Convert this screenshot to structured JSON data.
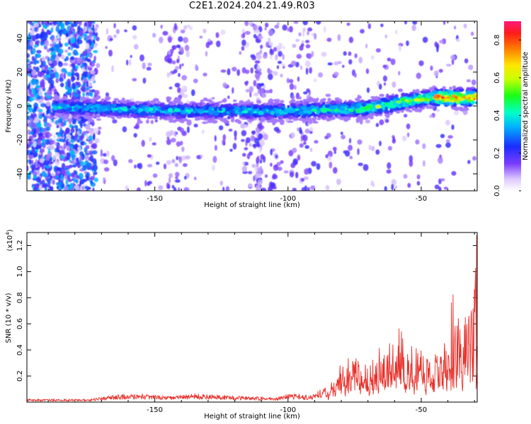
{
  "title": "C2E1.2024.204.21.49.R03",
  "chart_data": [
    {
      "type": "heatmap",
      "xlabel": "Height of straight line (km)",
      "ylabel": "Frequency (Hz)",
      "xlim": [
        -198,
        -29
      ],
      "ylim": [
        -50,
        50
      ],
      "xticks": [
        -150,
        -100,
        -50
      ],
      "yticks": [
        -40,
        -20,
        0,
        20,
        40
      ],
      "colorbar": {
        "label": "Normalized spectral amplitude",
        "range": [
          0.0,
          0.9
        ],
        "ticks": [
          0.0,
          0.2,
          0.4,
          0.6,
          0.8
        ]
      },
      "ridge_center_hz": [
        [
          -195,
          0
        ],
        [
          -180,
          -1
        ],
        [
          -160,
          -2
        ],
        [
          -140,
          -3
        ],
        [
          -120,
          -3
        ],
        [
          -100,
          -3
        ],
        [
          -85,
          -2
        ],
        [
          -75,
          -2
        ],
        [
          -65,
          0
        ],
        [
          -55,
          3
        ],
        [
          -45,
          5
        ],
        [
          -35,
          5
        ],
        [
          -29,
          5
        ]
      ]
    },
    {
      "type": "line",
      "xlabel": "Height of straight line (km)",
      "ylabel": "SNR (10 * v/v)",
      "y_scale_label": "(x10",
      "y_scale_exp": "4",
      "xlim": [
        -198,
        -29
      ],
      "ylim": [
        0,
        1.3
      ],
      "xticks": [
        -150,
        -100,
        -50
      ],
      "yticks": [
        0.2,
        0.4,
        0.6,
        0.8,
        1.0,
        1.2
      ],
      "series_color": "#e8302a",
      "envelope": [
        [
          -198,
          0.02
        ],
        [
          -175,
          0.02
        ],
        [
          -165,
          0.05
        ],
        [
          -155,
          0.06
        ],
        [
          -145,
          0.04
        ],
        [
          -135,
          0.06
        ],
        [
          -125,
          0.05
        ],
        [
          -115,
          0.04
        ],
        [
          -105,
          0.03
        ],
        [
          -100,
          0.06
        ],
        [
          -92,
          0.05
        ],
        [
          -85,
          0.12
        ],
        [
          -80,
          0.25
        ],
        [
          -75,
          0.3
        ],
        [
          -70,
          0.25
        ],
        [
          -65,
          0.35
        ],
        [
          -60,
          0.45
        ],
        [
          -57,
          0.6
        ],
        [
          -55,
          0.5
        ],
        [
          -52,
          0.45
        ],
        [
          -47,
          0.3
        ],
        [
          -43,
          0.3
        ],
        [
          -40,
          0.6
        ],
        [
          -37,
          0.75
        ],
        [
          -34,
          0.7
        ],
        [
          -32,
          0.8
        ],
        [
          -30,
          1.0
        ],
        [
          -29,
          1.22
        ]
      ]
    }
  ]
}
